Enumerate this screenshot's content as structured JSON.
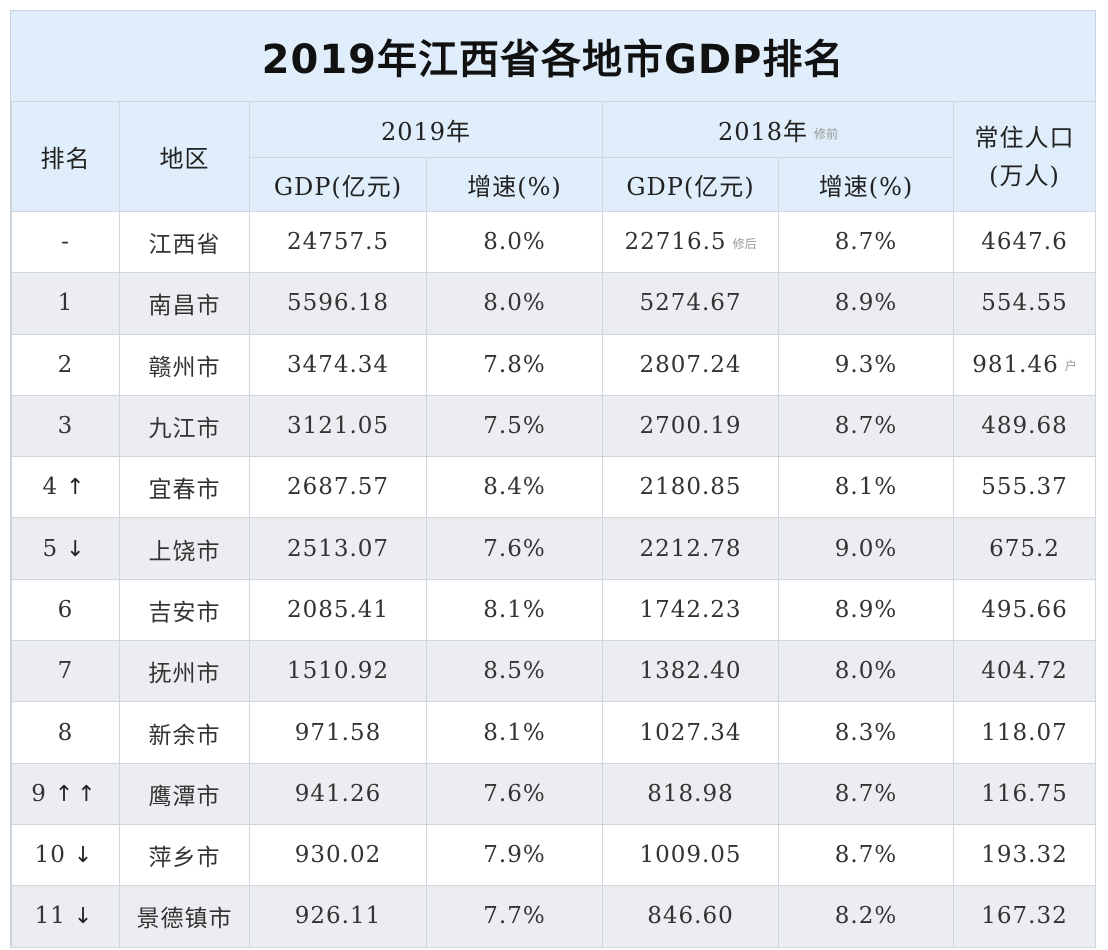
{
  "title": "2019年江西省各地市GDP排名",
  "headers": {
    "rank": "排名",
    "region": "地区",
    "year2019": "2019年",
    "year2018": "2018年",
    "year2018_note": "修前",
    "population_line1": "常住人口",
    "population_line2": "(万人)",
    "gdp_2019": "GDP(亿元)",
    "growth_2019": "增速(%)",
    "gdp_2018": "GDP(亿元)",
    "growth_2018": "增速(%)"
  },
  "rows": [
    {
      "rank": "-",
      "arrow": "",
      "region": "江西省",
      "gdp2019": "24757.5",
      "growth2019": "8.0%",
      "gdp2018": "22716.5",
      "gdp2018_note": "修后",
      "growth2018": "8.7%",
      "population": "4647.6",
      "population_note": ""
    },
    {
      "rank": "1",
      "arrow": "",
      "region": "南昌市",
      "gdp2019": "5596.18",
      "growth2019": "8.0%",
      "gdp2018": "5274.67",
      "gdp2018_note": "",
      "growth2018": "8.9%",
      "population": "554.55",
      "population_note": ""
    },
    {
      "rank": "2",
      "arrow": "",
      "region": "赣州市",
      "gdp2019": "3474.34",
      "growth2019": "7.8%",
      "gdp2018": "2807.24",
      "gdp2018_note": "",
      "growth2018": "9.3%",
      "population": "981.46",
      "population_note": "户"
    },
    {
      "rank": "3",
      "arrow": "",
      "region": "九江市",
      "gdp2019": "3121.05",
      "growth2019": "7.5%",
      "gdp2018": "2700.19",
      "gdp2018_note": "",
      "growth2018": "8.7%",
      "population": "489.68",
      "population_note": ""
    },
    {
      "rank": "4",
      "arrow": "↑",
      "region": "宜春市",
      "gdp2019": "2687.57",
      "growth2019": "8.4%",
      "gdp2018": "2180.85",
      "gdp2018_note": "",
      "growth2018": "8.1%",
      "population": "555.37",
      "population_note": ""
    },
    {
      "rank": "5",
      "arrow": "↓",
      "region": "上饶市",
      "gdp2019": "2513.07",
      "growth2019": "7.6%",
      "gdp2018": "2212.78",
      "gdp2018_note": "",
      "growth2018": "9.0%",
      "population": "675.2",
      "population_note": ""
    },
    {
      "rank": "6",
      "arrow": "",
      "region": "吉安市",
      "gdp2019": "2085.41",
      "growth2019": "8.1%",
      "gdp2018": "1742.23",
      "gdp2018_note": "",
      "growth2018": "8.9%",
      "population": "495.66",
      "population_note": ""
    },
    {
      "rank": "7",
      "arrow": "",
      "region": "抚州市",
      "gdp2019": "1510.92",
      "growth2019": "8.5%",
      "gdp2018": "1382.40",
      "gdp2018_note": "",
      "growth2018": "8.0%",
      "population": "404.72",
      "population_note": ""
    },
    {
      "rank": "8",
      "arrow": "",
      "region": "新余市",
      "gdp2019": "971.58",
      "growth2019": "8.1%",
      "gdp2018": "1027.34",
      "gdp2018_note": "",
      "growth2018": "8.3%",
      "population": "118.07",
      "population_note": ""
    },
    {
      "rank": "9",
      "arrow": "↑↑",
      "region": "鹰潭市",
      "gdp2019": "941.26",
      "growth2019": "7.6%",
      "gdp2018": "818.98",
      "gdp2018_note": "",
      "growth2018": "8.7%",
      "population": "116.75",
      "population_note": ""
    },
    {
      "rank": "10",
      "arrow": "↓",
      "region": "萍乡市",
      "gdp2019": "930.02",
      "growth2019": "7.9%",
      "gdp2018": "1009.05",
      "gdp2018_note": "",
      "growth2018": "8.7%",
      "population": "193.32",
      "population_note": ""
    },
    {
      "rank": "11",
      "arrow": "↓",
      "region": "景德镇市",
      "gdp2019": "926.11",
      "growth2019": "7.7%",
      "gdp2018": "846.60",
      "gdp2018_note": "",
      "growth2018": "8.2%",
      "population": "167.32",
      "population_note": ""
    }
  ]
}
